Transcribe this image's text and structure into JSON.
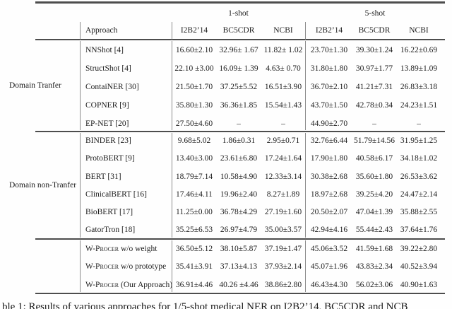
{
  "table": {
    "header": {
      "shot1": "1-shot",
      "shot5": "5-shot",
      "approach": "Approach",
      "datasets": [
        "I2B2’14",
        "BC5CDR",
        "NCBI",
        "I2B2’14",
        "BC5CDR",
        "NCBI"
      ]
    },
    "groups": [
      {
        "label": "Domain Tranfer",
        "rows": [
          {
            "name_sc": "",
            "name": "NNShot [4]",
            "values": [
              "16.60±2.10",
              "32.96± 1.67",
              "11.82± 1.02",
              "23.70±1.30",
              "39.30±1.24",
              "16.22±0.69"
            ]
          },
          {
            "name_sc": "",
            "name": "StructShot [4]",
            "values": [
              "22.10 ±3.00",
              "16.09± 1.39",
              "4.63± 0.70",
              "31.80±1.80",
              "30.97±1.77",
              "13.89±1.09"
            ]
          },
          {
            "name_sc": "",
            "name": "ContaiNER [30]",
            "values": [
              "21.50±1.70",
              "37.25±5.52",
              "16.51±3.90",
              "36.70±2.10",
              "41.21±7.31",
              "26.83±3.18"
            ]
          },
          {
            "name_sc": "",
            "name": "COPNER [9]",
            "values": [
              "35.80±1.30",
              "36.36±1.85",
              "15.54±1.43",
              "43.70±1.50",
              "42.78±0.34",
              "24.23±1.51"
            ]
          },
          {
            "name_sc": "",
            "name": "EP-NET [20]",
            "values": [
              "27.50±4.60",
              "–",
              "–",
              "44.90±2.70",
              "–",
              "–"
            ]
          }
        ]
      },
      {
        "label": "Domain non-Tranfer",
        "rows": [
          {
            "name_sc": "",
            "name": "BINDER [23]",
            "values": [
              "9.68±5.02",
              "1.86±0.31",
              "2.95±0.71",
              "32.76±6.44",
              "51.79±14.56",
              "31.95±1.25"
            ]
          },
          {
            "name_sc": "",
            "name": "ProtoBERT [9]",
            "values": [
              "13.40±3.00",
              "23.61±6.80",
              "17.24±1.64",
              "17.90±1.80",
              "40.58±6.17",
              "34.18±1.02"
            ]
          },
          {
            "name_sc": "",
            "name": "BERT [31]",
            "values": [
              "18.79±7.14",
              "10.58±4.90",
              "12.33±3.14",
              "30.38±2.68",
              "35.60±1.80",
              "26.53±3.62"
            ]
          },
          {
            "name_sc": "",
            "name": "ClinicalBERT [16]",
            "values": [
              "17.46±4.11",
              "19.96±2.40",
              "8.27±1.89",
              "18.97±2.68",
              "39.25±4.20",
              "24.47±2.14"
            ]
          },
          {
            "name_sc": "",
            "name": "BioBERT [17]",
            "values": [
              "11.25±0.00",
              "36.78±4.29",
              "27.19±1.60",
              "20.50±2.07",
              "47.04±1.39",
              "35.88±2.55"
            ]
          },
          {
            "name_sc": "",
            "name": "GatorTron [18]",
            "values": [
              "35.25±6.53",
              "26.97±4.79",
              "35.00±3.57",
              "42.94±4.16",
              "55.44±2.43",
              "37.64±1.76"
            ]
          }
        ]
      },
      {
        "label": "",
        "rows": [
          {
            "name_sc": "W-Procer",
            "name": " w/o weight",
            "values": [
              "36.50±5.12",
              "38.10±5.87",
              "37.19±1.47",
              "45.06±3.52",
              "41.59±1.68",
              "39.22±2.80"
            ]
          },
          {
            "name_sc": "W-Procer",
            "name": " w/o prototype",
            "values": [
              "35.41±3.91",
              "37.13±4.13",
              "37.93±2.14",
              "45.07±1.96",
              "43.83±2.34",
              "40.52±3.94"
            ]
          },
          {
            "name_sc": "W-Procer",
            "name": " (Our Approach)",
            "values": [
              "36.91±4.46",
              "40.26 ±4.46",
              "38.86±2.80",
              "46.43±4.30",
              "56.02±3.06",
              "40.90±1.63"
            ]
          }
        ]
      }
    ]
  },
  "caption": "ble 1: Results of various approaches for 1/5-shot medical NER on I2B2’14, BC5CDR and NCB"
}
